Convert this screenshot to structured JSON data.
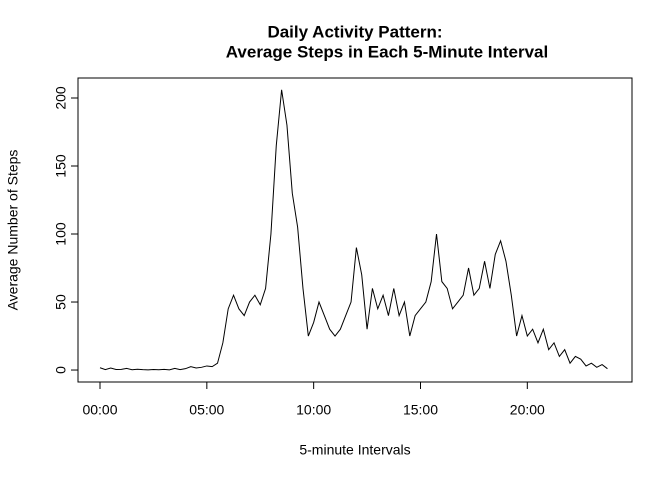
{
  "chart_data": {
    "type": "line",
    "title": [
      "Daily Activity Pattern:",
      "Average Steps in Each 5-Minute Interval"
    ],
    "x_label": "5-minute Intervals",
    "y_label": "Average Number of Steps",
    "x": [
      0,
      0.25,
      0.5,
      0.75,
      1,
      1.25,
      1.5,
      1.75,
      2,
      2.25,
      2.5,
      2.75,
      3,
      3.25,
      3.5,
      3.75,
      4,
      4.25,
      4.5,
      4.75,
      5,
      5.25,
      5.5,
      5.75,
      6,
      6.25,
      6.5,
      6.75,
      7,
      7.25,
      7.5,
      7.75,
      8,
      8.25,
      8.5,
      8.75,
      9,
      9.25,
      9.5,
      9.75,
      10,
      10.25,
      10.5,
      10.75,
      11,
      11.25,
      11.5,
      11.75,
      12,
      12.25,
      12.5,
      12.75,
      13,
      13.25,
      13.5,
      13.75,
      14,
      14.25,
      14.5,
      14.75,
      15,
      15.25,
      15.5,
      15.75,
      16,
      16.25,
      16.5,
      16.75,
      17,
      17.25,
      17.5,
      17.75,
      18,
      18.25,
      18.5,
      18.75,
      19,
      19.25,
      19.5,
      19.75,
      20,
      20.25,
      20.5,
      20.75,
      21,
      21.25,
      21.5,
      21.75,
      22,
      22.25,
      22.5,
      22.75,
      23,
      23.25,
      23.5,
      23.75
    ],
    "values": [
      1.7,
      0.3,
      1.5,
      0.4,
      0.5,
      1.2,
      0.2,
      0.6,
      0.3,
      0.1,
      0.4,
      0.2,
      0.5,
      0.1,
      1.2,
      0.3,
      1.0,
      2.5,
      1.5,
      2.0,
      3.0,
      2.5,
      5.0,
      20,
      45,
      55,
      45,
      40,
      50,
      55,
      48,
      60,
      100,
      165,
      206,
      180,
      130,
      105,
      60,
      25,
      35,
      50,
      40,
      30,
      25,
      30,
      40,
      50,
      90,
      70,
      30,
      60,
      45,
      55,
      40,
      60,
      40,
      50,
      25,
      40,
      45,
      50,
      65,
      100,
      65,
      60,
      45,
      50,
      55,
      75,
      55,
      60,
      80,
      60,
      85,
      95,
      80,
      55,
      25,
      40,
      25,
      30,
      20,
      30,
      15,
      20,
      10,
      15,
      5,
      10,
      8,
      3,
      5,
      2,
      4,
      1
    ],
    "color": "#000000",
    "xlim": [
      -1.03,
      24.9
    ],
    "ylim": [
      -8.8,
      214.7
    ],
    "xticks": [
      {
        "value": 0,
        "label": "00:00"
      },
      {
        "value": 5,
        "label": "05:00"
      },
      {
        "value": 10,
        "label": "10:00"
      },
      {
        "value": 15,
        "label": "15:00"
      },
      {
        "value": 20,
        "label": "20:00"
      }
    ],
    "yticks": [
      0,
      50,
      100,
      150,
      200
    ]
  }
}
